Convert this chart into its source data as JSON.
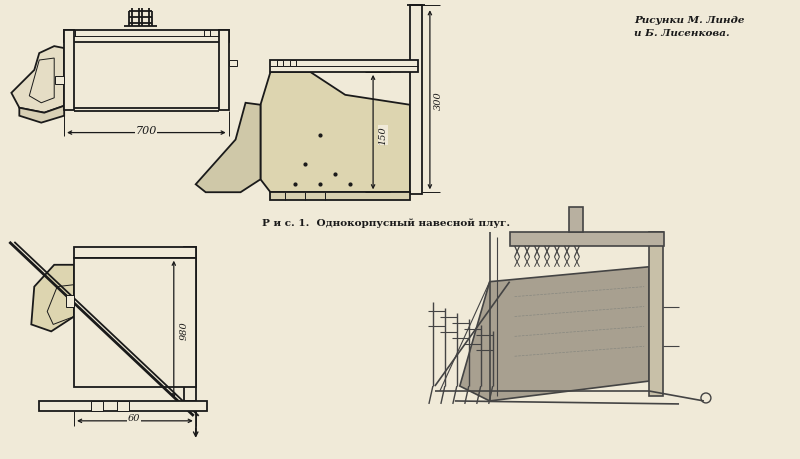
{
  "background_color": "#f0ead8",
  "line_color": "#1a1a1a",
  "text_color": "#1a1a1a",
  "title_text": "Р и с. 1.  Однокорпусный навесной плуг.",
  "attribution_line1": "Рисунки М. Линде",
  "attribution_line2": "и Б. Лисенкова.",
  "dim_700": "700",
  "dim_300": "300",
  "dim_150": "150",
  "dim_980": "980",
  "dim_60": "60",
  "fig_width": 8.0,
  "fig_height": 4.6,
  "dpi": 100
}
